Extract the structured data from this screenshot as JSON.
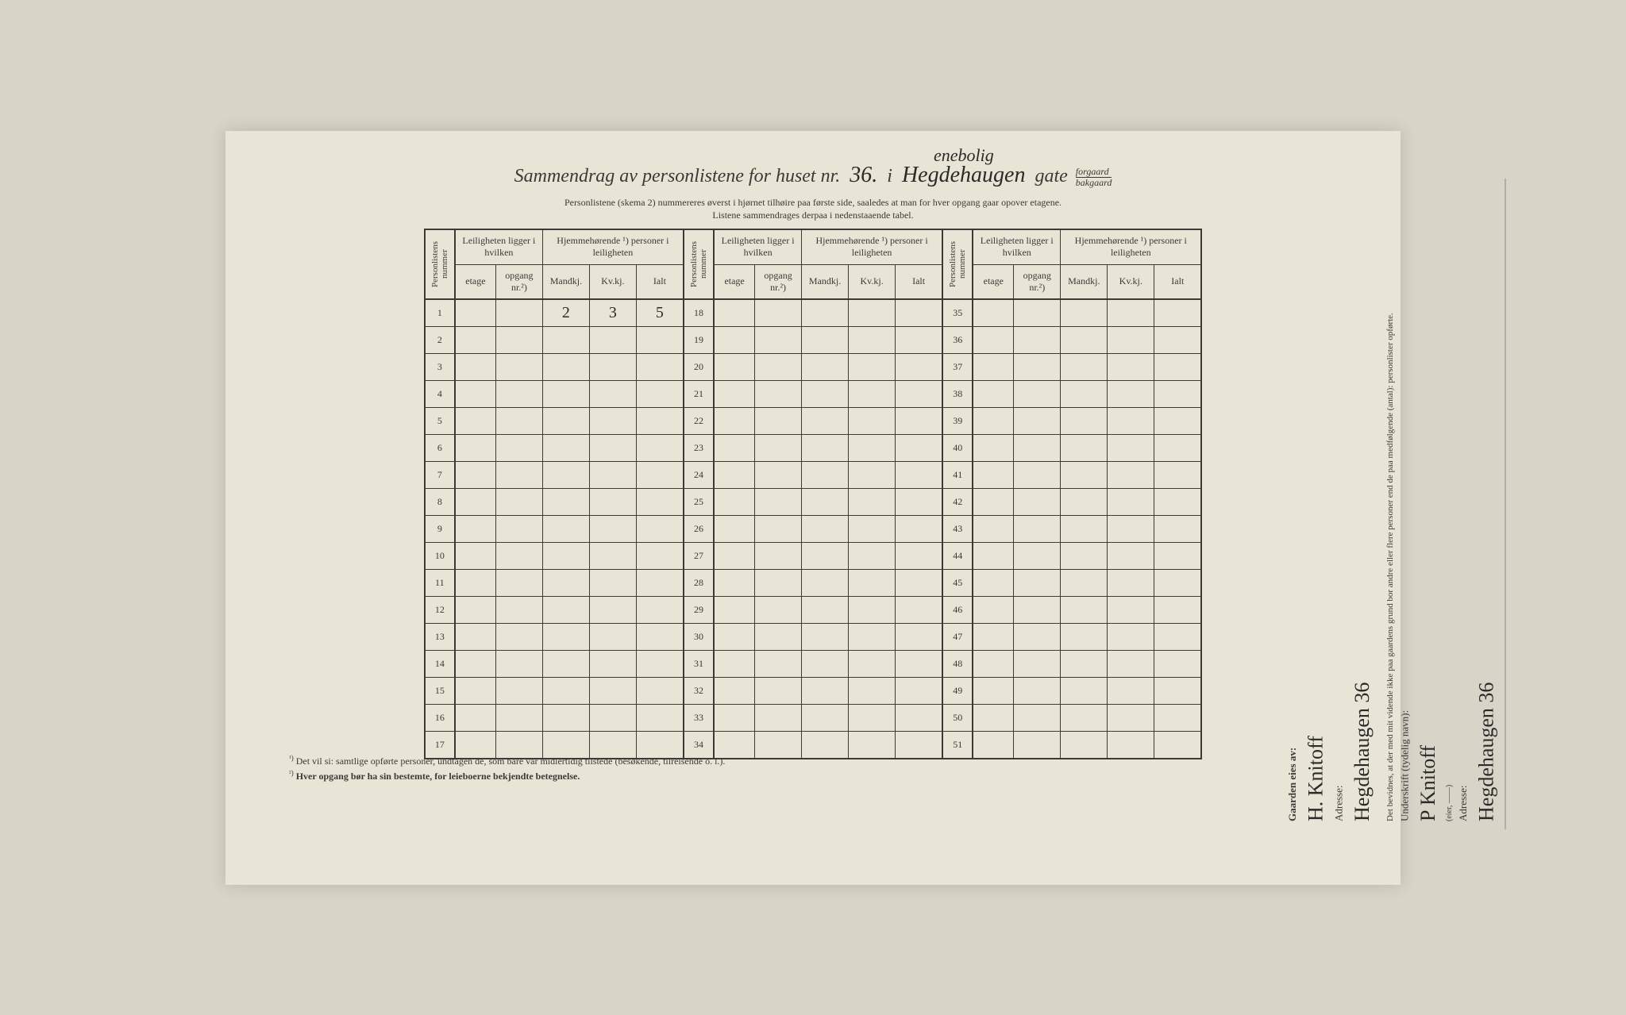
{
  "title": {
    "prefix": "Sammendrag av personlistene for huset nr.",
    "house_nr": "36.",
    "word_i": "i",
    "street_hw_top": "enebolig",
    "street_hw": "Hegdehaugen",
    "word_gate": "gate",
    "forgaard": "forgaard",
    "bakgaard": "bakgaard"
  },
  "instructions": {
    "line1": "Personlistene (skema 2) nummereres øverst i hjørnet tilhøire paa første side, saaledes at man for hver opgang gaar opover etagene.",
    "line2": "Listene sammendrages derpaa i nedenstaaende tabel."
  },
  "headers": {
    "personlistens_nummer": "Personlistens nummer",
    "leiligheten": "Leiligheten ligger i hvilken",
    "hjemmehorende": "Hjemmehørende ¹) personer i leiligheten",
    "etage": "etage",
    "opgang": "opgang nr.²)",
    "mandkj": "Mandkj.",
    "kvkj": "Kv.kj.",
    "ialt": "Ialt"
  },
  "row_data": {
    "row1": {
      "mandkj": "2",
      "kvkj": "3",
      "ialt": "5"
    }
  },
  "block1_nums": [
    "1",
    "2",
    "3",
    "4",
    "5",
    "6",
    "7",
    "8",
    "9",
    "10",
    "11",
    "12",
    "13",
    "14",
    "15",
    "16",
    "17"
  ],
  "block2_nums": [
    "18",
    "19",
    "20",
    "21",
    "22",
    "23",
    "24",
    "25",
    "26",
    "27",
    "28",
    "29",
    "30",
    "31",
    "32",
    "33",
    "34"
  ],
  "block3_nums": [
    "35",
    "36",
    "37",
    "38",
    "39",
    "40",
    "41",
    "42",
    "43",
    "44",
    "45",
    "46",
    "47",
    "48",
    "49",
    "50",
    "51"
  ],
  "footnotes": {
    "f1_sup": "¹)",
    "f1": "Det vil si: samtlige opførte personer, undtagen de, som bare var midlertidig tilstede (besøkende, tilreisende o. l.).",
    "f2_sup": "²)",
    "f2": "Hver opgang bør ha sin bestemte, for leieboerne bekjendte betegnelse."
  },
  "side": {
    "gaarden_label": "Gaarden eies av:",
    "owner_sig": "H. Knitoff",
    "adresse_label1": "Adresse:",
    "adresse_hw1": "Hegdehaugen 36",
    "bevidnes_text": "Det bevidnes, at der med mit vidende ikke paa gaardens grund bor andre eller flere personer end de paa medfølgende (antal): personlister opførte.",
    "underskrift_label": "Underskrift (tydelig navn):",
    "underskrift_hw": "P Knitoff",
    "eier": "(eier, ——)",
    "adresse_label2": "Adresse:",
    "adresse_hw2": "Hegdehaugen 36"
  },
  "colors": {
    "paper": "#e8e4d6",
    "ink": "#3a3a36",
    "hw": "#2a2a28",
    "bg": "#d8d4c8"
  }
}
